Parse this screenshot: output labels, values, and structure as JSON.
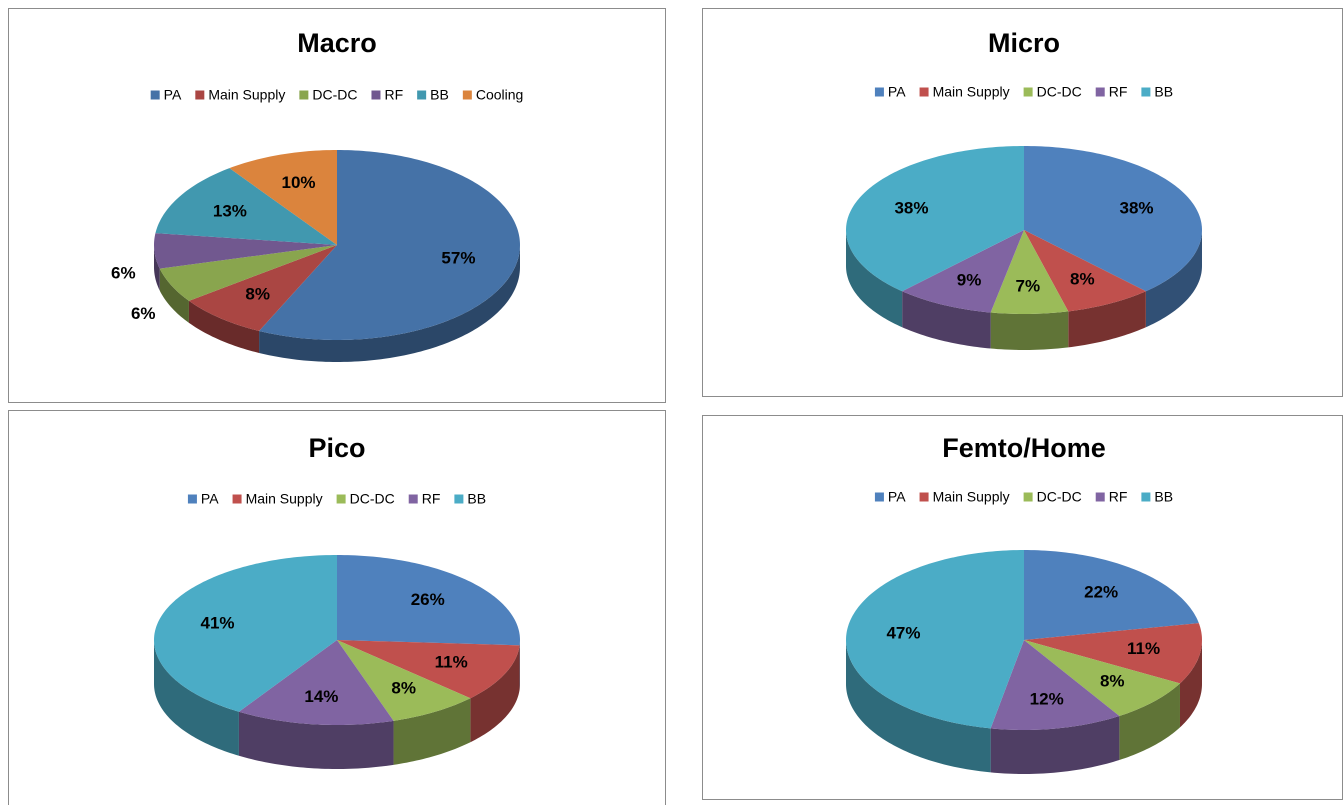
{
  "chart_data": [
    {
      "type": "pie3d",
      "title": "Macro",
      "categories": [
        "PA",
        "Main Supply",
        "DC-DC",
        "RF",
        "BB",
        "Cooling"
      ],
      "values": [
        57,
        8,
        6,
        6,
        13,
        10
      ],
      "value_labels": [
        "57%",
        "8%",
        "6%",
        "6%",
        "13%",
        "10%"
      ],
      "colors": [
        "#4572a7",
        "#aa4643",
        "#89a54e",
        "#71588f",
        "#4198af",
        "#db843d"
      ]
    },
    {
      "type": "pie3d",
      "title": "Micro",
      "categories": [
        "PA",
        "Main Supply",
        "DC-DC",
        "RF",
        "BB"
      ],
      "values": [
        38,
        8,
        7,
        9,
        38
      ],
      "value_labels": [
        "38%",
        "8%",
        "7%",
        "9%",
        "38%"
      ],
      "colors": [
        "#4f81bd",
        "#c0504d",
        "#9bbb59",
        "#8064a2",
        "#4bacc6"
      ]
    },
    {
      "type": "pie3d",
      "title": "Pico",
      "categories": [
        "PA",
        "Main Supply",
        "DC-DC",
        "RF",
        "BB"
      ],
      "values": [
        26,
        11,
        8,
        14,
        41
      ],
      "value_labels": [
        "26%",
        "11%",
        "8%",
        "14%",
        "41%"
      ],
      "colors": [
        "#4f81bd",
        "#c0504d",
        "#9bbb59",
        "#8064a2",
        "#4bacc6"
      ]
    },
    {
      "type": "pie3d",
      "title": "Femto/Home",
      "categories": [
        "PA",
        "Main Supply",
        "DC-DC",
        "RF",
        "BB"
      ],
      "values": [
        22,
        11,
        8,
        12,
        47
      ],
      "value_labels": [
        "22%",
        "11%",
        "8%",
        "12%",
        "47%"
      ],
      "colors": [
        "#4f81bd",
        "#c0504d",
        "#9bbb59",
        "#8064a2",
        "#4bacc6"
      ]
    }
  ]
}
